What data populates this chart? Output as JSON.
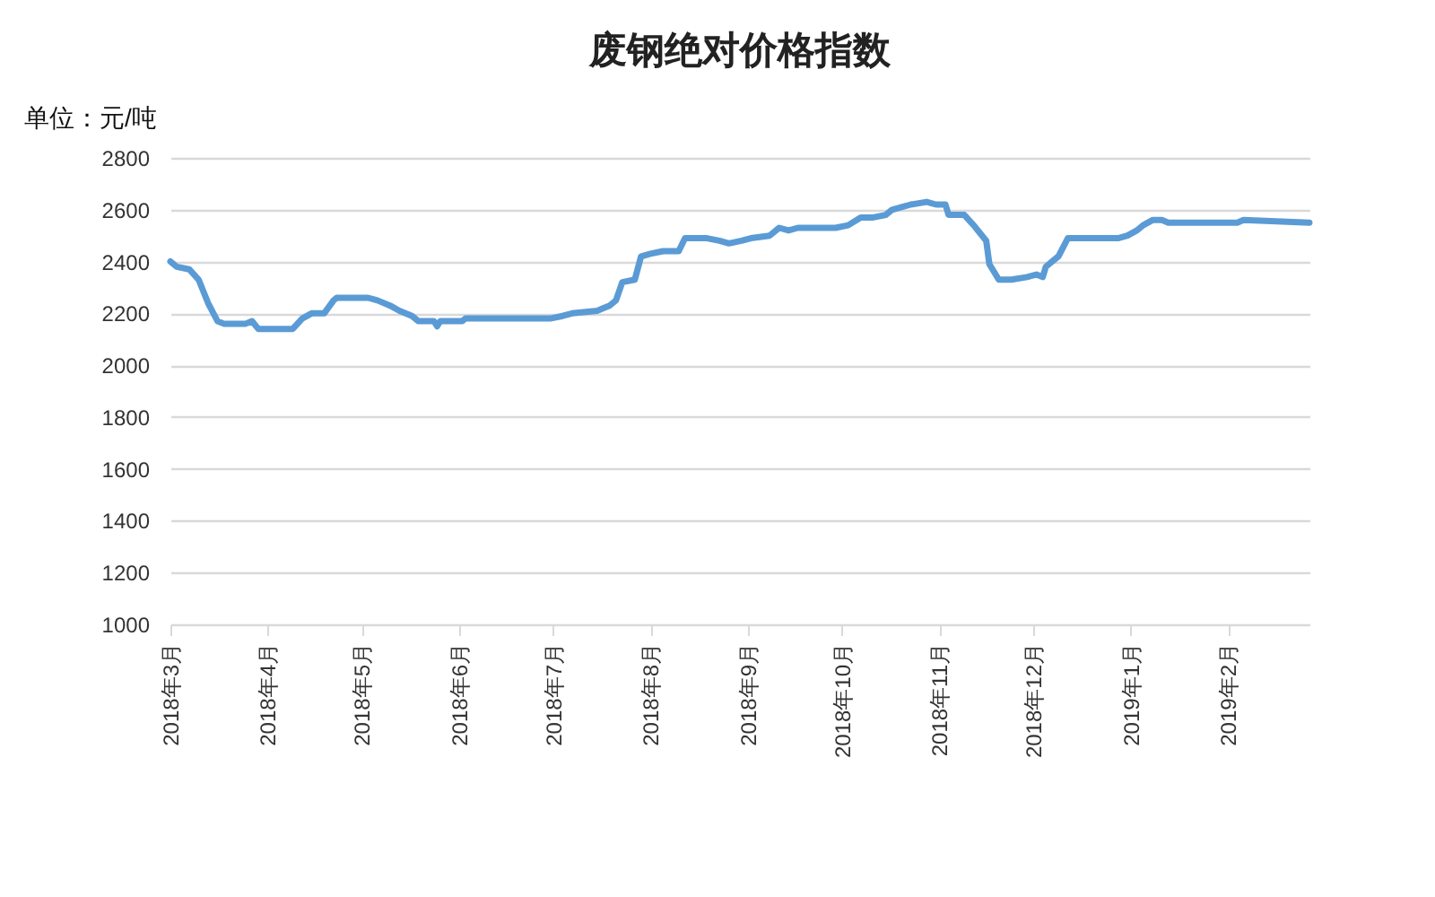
{
  "chart_data": {
    "type": "line",
    "title": "废钢绝对价格指数",
    "ylabel": "单位：元/吨",
    "x": [
      "2018-03-01",
      "2018-03-03",
      "2018-03-07",
      "2018-03-10",
      "2018-03-13",
      "2018-03-16",
      "2018-03-18",
      "2018-03-25",
      "2018-03-27",
      "2018-03-29",
      "2018-04-09",
      "2018-04-12",
      "2018-04-15",
      "2018-04-19",
      "2018-04-22",
      "2018-04-23",
      "2018-05-03",
      "2018-05-06",
      "2018-05-10",
      "2018-05-13",
      "2018-05-17",
      "2018-05-19",
      "2018-05-24",
      "2018-05-25",
      "2018-05-26",
      "2018-06-02",
      "2018-06-03",
      "2018-06-30",
      "2018-07-04",
      "2018-07-07",
      "2018-07-15",
      "2018-07-17",
      "2018-07-19",
      "2018-07-21",
      "2018-07-23",
      "2018-07-27",
      "2018-07-29",
      "2018-08-01",
      "2018-08-05",
      "2018-08-10",
      "2018-08-12",
      "2018-08-19",
      "2018-08-23",
      "2018-08-26",
      "2018-08-30",
      "2018-09-02",
      "2018-09-08",
      "2018-09-11",
      "2018-09-14",
      "2018-09-17",
      "2018-09-29",
      "2018-10-03",
      "2018-10-07",
      "2018-10-11",
      "2018-10-15",
      "2018-10-17",
      "2018-10-20",
      "2018-10-23",
      "2018-10-28",
      "2018-10-31",
      "2018-11-03",
      "2018-11-04",
      "2018-11-09",
      "2018-11-12",
      "2018-11-16",
      "2018-11-17",
      "2018-11-20",
      "2018-11-24",
      "2018-11-29",
      "2018-12-02",
      "2018-12-04",
      "2018-12-05",
      "2018-12-07",
      "2018-12-09",
      "2018-12-12",
      "2018-12-14",
      "2018-12-28",
      "2018-12-31",
      "2019-01-03",
      "2019-01-05",
      "2019-01-08",
      "2019-01-11",
      "2019-01-13",
      "2019-02-04",
      "2019-02-06",
      "2019-02-27"
    ],
    "series": [
      {
        "color": "#5b9bd5",
        "values": [
          2400,
          2380,
          2370,
          2330,
          2240,
          2170,
          2160,
          2160,
          2170,
          2140,
          2140,
          2180,
          2200,
          2200,
          2250,
          2260,
          2260,
          2250,
          2230,
          2210,
          2190,
          2170,
          2170,
          2150,
          2170,
          2170,
          2180,
          2180,
          2190,
          2200,
          2210,
          2220,
          2230,
          2250,
          2320,
          2330,
          2420,
          2430,
          2440,
          2440,
          2490,
          2490,
          2480,
          2470,
          2480,
          2490,
          2500,
          2530,
          2520,
          2530,
          2530,
          2540,
          2570,
          2570,
          2580,
          2600,
          2610,
          2620,
          2630,
          2620,
          2620,
          2580,
          2580,
          2540,
          2480,
          2390,
          2330,
          2330,
          2340,
          2350,
          2340,
          2380,
          2400,
          2420,
          2490,
          2490,
          2490,
          2500,
          2520,
          2540,
          2560,
          2560,
          2550,
          2550,
          2560,
          2550
        ]
      }
    ],
    "xlim": [
      "2018-03-01",
      "2019-02-27"
    ],
    "xticks": [
      {
        "value": "2018-03-01",
        "label": "2018年3月"
      },
      {
        "value": "2018-04-01",
        "label": "2018年4月"
      },
      {
        "value": "2018-05-01",
        "label": "2018年5月"
      },
      {
        "value": "2018-06-01",
        "label": "2018年6月"
      },
      {
        "value": "2018-07-01",
        "label": "2018年7月"
      },
      {
        "value": "2018-08-01",
        "label": "2018年8月"
      },
      {
        "value": "2018-09-01",
        "label": "2018年9月"
      },
      {
        "value": "2018-10-01",
        "label": "2018年10月"
      },
      {
        "value": "2018-11-01",
        "label": "2018年11月"
      },
      {
        "value": "2018-12-01",
        "label": "2018年12月"
      },
      {
        "value": "2019-01-01",
        "label": "2019年1月"
      },
      {
        "value": "2019-02-01",
        "label": "2019年2月"
      }
    ],
    "ylim": [
      1000,
      2800
    ],
    "yticks": [
      1000,
      1200,
      1400,
      1600,
      1800,
      2000,
      2200,
      2400,
      2600,
      2800
    ],
    "grid": "y",
    "marker": "none",
    "line_style": "solid"
  }
}
